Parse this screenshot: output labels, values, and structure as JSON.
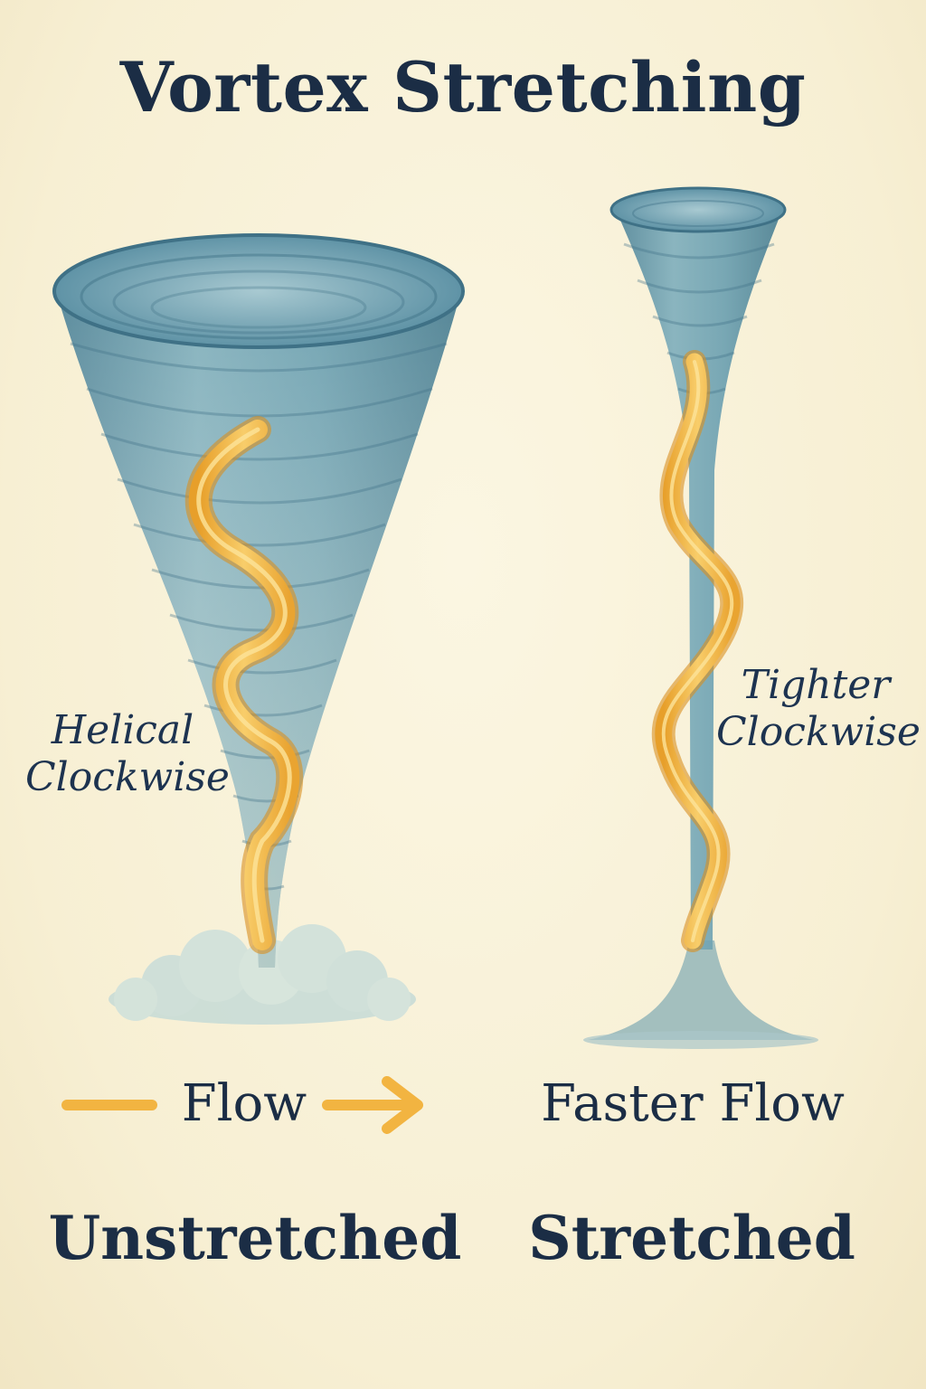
{
  "title": "Vortex Stretching",
  "left": {
    "annotation": [
      "Helical",
      "Clockwise"
    ],
    "flow_label": "Flow",
    "state_label": "Unstretched"
  },
  "right": {
    "annotation": [
      "Tighter",
      "Clockwise"
    ],
    "flow_label": "Faster Flow",
    "state_label": "Stretched"
  },
  "colors": {
    "background": "#f8f1d8",
    "vortex_blue": "#5f93a6",
    "helix_gold": "#f2b441",
    "text": "#1b2d45"
  }
}
